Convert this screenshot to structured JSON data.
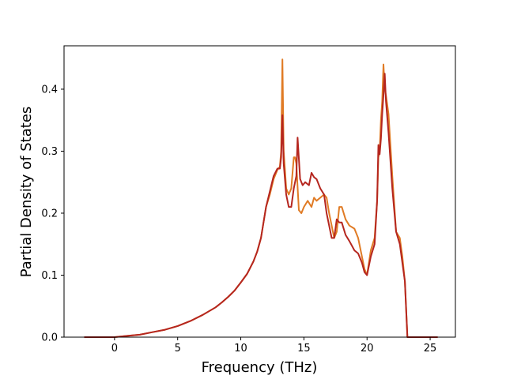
{
  "chart_data": {
    "type": "line",
    "title": "",
    "xlabel": "Frequency (THz)",
    "ylabel": "Partial Density of States",
    "xlim": [
      -4.0,
      27.0
    ],
    "ylim": [
      0.0,
      0.47
    ],
    "xticks": [
      0,
      5,
      10,
      15,
      20,
      25
    ],
    "yticks": [
      0.0,
      0.1,
      0.2,
      0.3,
      0.4
    ],
    "xtick_labels": [
      "0",
      "5",
      "10",
      "15",
      "20",
      "25"
    ],
    "ytick_labels": [
      "0.0",
      "0.1",
      "0.2",
      "0.3",
      "0.4"
    ],
    "grid": false,
    "legend": "none",
    "series": [
      {
        "color": "#e07b25",
        "x": [
          -2.4,
          0.0,
          1.0,
          2.0,
          3.0,
          4.0,
          5.0,
          6.0,
          7.0,
          8.0,
          8.5,
          9.0,
          9.5,
          10.0,
          10.5,
          11.0,
          11.3,
          11.6,
          12.0,
          12.3,
          12.6,
          12.9,
          13.1,
          13.2,
          13.3,
          13.4,
          13.6,
          13.8,
          14.0,
          14.2,
          14.3,
          14.4,
          14.6,
          14.8,
          15.0,
          15.3,
          15.6,
          15.8,
          16.0,
          16.3,
          16.6,
          16.8,
          17.0,
          17.2,
          17.4,
          17.6,
          17.8,
          18.0,
          18.3,
          18.6,
          19.0,
          19.3,
          19.6,
          19.8,
          20.0,
          20.3,
          20.6,
          20.8,
          20.9,
          21.0,
          21.1,
          21.2,
          21.3,
          21.4,
          21.5,
          21.7,
          22.0,
          22.3,
          22.6,
          22.8,
          23.0,
          23.2,
          23.5,
          25.6
        ],
        "y": [
          0.0,
          0.0,
          0.002,
          0.004,
          0.008,
          0.012,
          0.018,
          0.026,
          0.036,
          0.048,
          0.056,
          0.065,
          0.075,
          0.088,
          0.102,
          0.122,
          0.138,
          0.16,
          0.21,
          0.23,
          0.255,
          0.27,
          0.275,
          0.3,
          0.448,
          0.3,
          0.24,
          0.23,
          0.24,
          0.29,
          0.29,
          0.28,
          0.205,
          0.2,
          0.21,
          0.22,
          0.21,
          0.225,
          0.22,
          0.225,
          0.23,
          0.225,
          0.2,
          0.18,
          0.16,
          0.17,
          0.21,
          0.21,
          0.19,
          0.18,
          0.175,
          0.16,
          0.13,
          0.11,
          0.1,
          0.14,
          0.16,
          0.22,
          0.29,
          0.3,
          0.35,
          0.38,
          0.44,
          0.4,
          0.39,
          0.36,
          0.26,
          0.17,
          0.16,
          0.13,
          0.09,
          0.0,
          0.0,
          0.0
        ]
      },
      {
        "color": "#b5261f",
        "x": [
          -2.4,
          0.0,
          1.0,
          2.0,
          3.0,
          4.0,
          5.0,
          6.0,
          7.0,
          8.0,
          8.5,
          9.0,
          9.5,
          10.0,
          10.5,
          11.0,
          11.3,
          11.6,
          12.0,
          12.3,
          12.6,
          12.9,
          13.1,
          13.2,
          13.3,
          13.4,
          13.6,
          13.8,
          14.0,
          14.2,
          14.4,
          14.5,
          14.7,
          14.9,
          15.1,
          15.4,
          15.6,
          15.8,
          16.0,
          16.3,
          16.6,
          16.8,
          17.0,
          17.2,
          17.4,
          17.6,
          17.8,
          18.0,
          18.3,
          18.6,
          19.0,
          19.3,
          19.6,
          19.8,
          20.0,
          20.3,
          20.6,
          20.8,
          20.9,
          21.0,
          21.1,
          21.2,
          21.3,
          21.4,
          21.5,
          21.7,
          22.0,
          22.3,
          22.6,
          22.8,
          23.0,
          23.2,
          23.5,
          25.6
        ],
        "y": [
          0.0,
          0.0,
          0.002,
          0.004,
          0.008,
          0.012,
          0.018,
          0.026,
          0.036,
          0.048,
          0.056,
          0.065,
          0.075,
          0.088,
          0.102,
          0.122,
          0.138,
          0.16,
          0.21,
          0.235,
          0.26,
          0.272,
          0.272,
          0.29,
          0.358,
          0.28,
          0.23,
          0.21,
          0.21,
          0.24,
          0.26,
          0.322,
          0.255,
          0.245,
          0.25,
          0.245,
          0.265,
          0.258,
          0.255,
          0.24,
          0.23,
          0.2,
          0.18,
          0.16,
          0.16,
          0.19,
          0.185,
          0.185,
          0.165,
          0.155,
          0.14,
          0.135,
          0.12,
          0.105,
          0.1,
          0.13,
          0.15,
          0.22,
          0.31,
          0.295,
          0.32,
          0.36,
          0.39,
          0.425,
          0.38,
          0.33,
          0.24,
          0.17,
          0.15,
          0.12,
          0.09,
          0.0,
          0.0,
          0.0
        ]
      }
    ]
  }
}
